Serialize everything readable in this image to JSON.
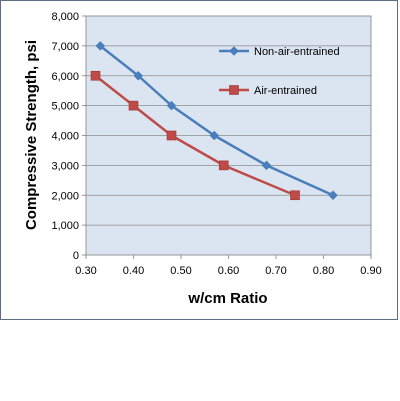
{
  "chart_data": {
    "type": "line",
    "title": "",
    "xlabel": "w/cm Ratio",
    "ylabel": "Compressive Strength, psi",
    "xlim": [
      0.3,
      0.9
    ],
    "ylim": [
      0,
      8000
    ],
    "x_ticks": [
      0.3,
      0.4,
      0.5,
      0.6,
      0.7,
      0.8,
      0.9
    ],
    "x_tick_labels": [
      "0.30",
      "0.40",
      "0.50",
      "0.60",
      "0.70",
      "0.80",
      "0.90"
    ],
    "y_ticks": [
      0,
      1000,
      2000,
      3000,
      4000,
      5000,
      6000,
      7000,
      8000
    ],
    "y_tick_labels": [
      "0",
      "1,000",
      "2,000",
      "3,000",
      "4,000",
      "5,000",
      "6,000",
      "7,000",
      "8,000"
    ],
    "grid": "horizontal",
    "legend_position": "top-right",
    "plot_background": "#dbe4f1",
    "series": [
      {
        "name": "Non-air-entrained",
        "color": "#4a7ebb",
        "marker": "diamond",
        "x": [
          0.33,
          0.41,
          0.48,
          0.57,
          0.68,
          0.82
        ],
        "y": [
          7000,
          6000,
          5000,
          4000,
          3000,
          2000
        ]
      },
      {
        "name": "Air-entrained",
        "color": "#be4b48",
        "marker": "square",
        "x": [
          0.32,
          0.4,
          0.48,
          0.59,
          0.74
        ],
        "y": [
          6000,
          5000,
          4000,
          3000,
          2000
        ]
      }
    ]
  }
}
